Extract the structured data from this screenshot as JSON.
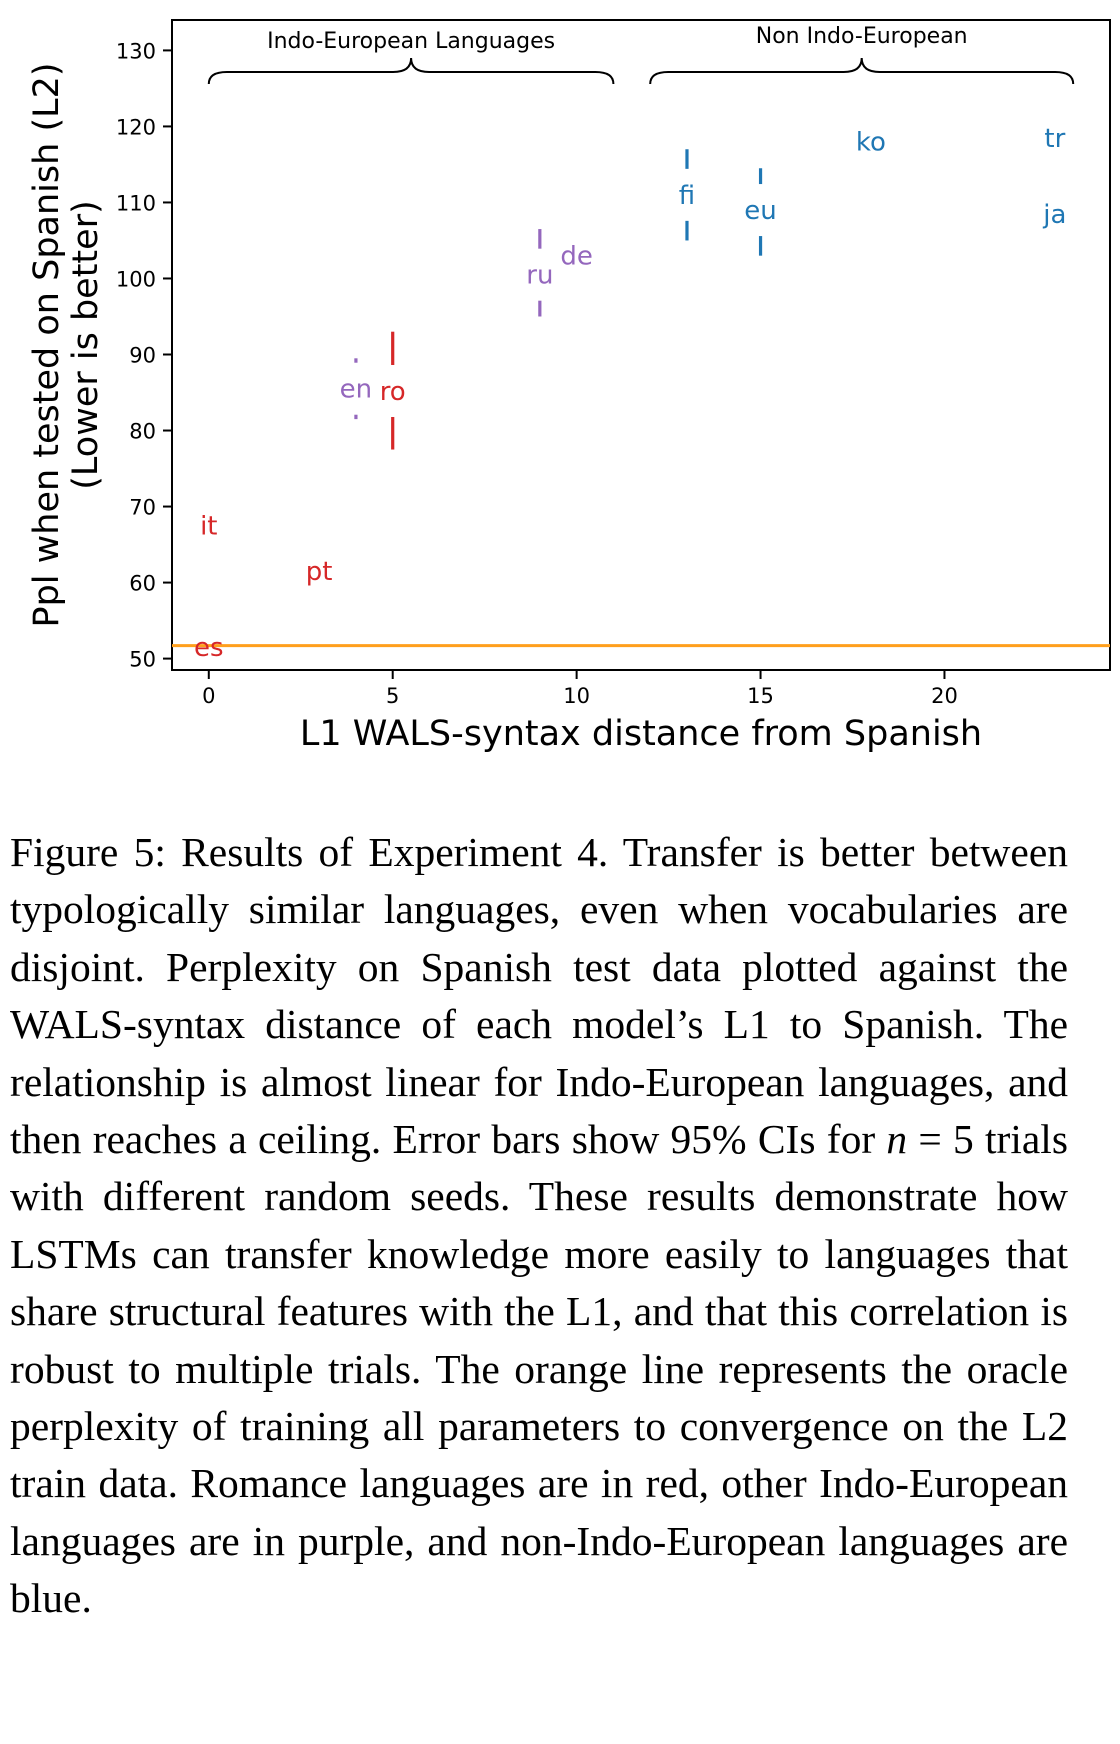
{
  "chart_data": {
    "type": "scatter",
    "xlabel": "L1 WALS-syntax distance from Spanish",
    "ylabel_line1": "Ppl when tested on Spanish (L2)",
    "ylabel_line2": "(Lower is better)",
    "xlim": [
      -1,
      24.5
    ],
    "ylim": [
      48.5,
      134
    ],
    "xticks": [
      0,
      5,
      10,
      15,
      20
    ],
    "yticks": [
      50,
      60,
      70,
      80,
      90,
      100,
      110,
      120,
      130
    ],
    "grid": false,
    "colors": {
      "romance": "#d62728",
      "indo_european": "#9467bd",
      "non_indo_european": "#1f77b4",
      "oracle": "#ff9f1c"
    },
    "oracle_line": {
      "y": 51.7,
      "color": "#ff9f1c"
    },
    "brackets": [
      {
        "label": "Indo-European Languages",
        "x_start": 0,
        "x_end": 11
      },
      {
        "label": "Non Indo-European",
        "x_start": 12,
        "x_end": 23.5
      }
    ],
    "points": [
      {
        "label": "es",
        "x": 0,
        "y": 51.5,
        "err": [
          51.5,
          51.5
        ],
        "group": "romance"
      },
      {
        "label": "it",
        "x": 0,
        "y": 67.5,
        "err": [
          65,
          70
        ],
        "group": "romance"
      },
      {
        "label": "pt",
        "x": 3,
        "y": 61.5,
        "err": [
          61.5,
          61.5
        ],
        "group": "romance"
      },
      {
        "label": "en",
        "x": 4,
        "y": 85.5,
        "err": [
          81.5,
          89.5
        ],
        "group": "indo_european"
      },
      {
        "label": "ro",
        "x": 5,
        "y": 85.2,
        "err": [
          77.5,
          93
        ],
        "group": "romance"
      },
      {
        "label": "ru",
        "x": 9,
        "y": 100.5,
        "err": [
          95,
          106.5
        ],
        "group": "indo_european"
      },
      {
        "label": "de",
        "x": 10,
        "y": 103,
        "err": [
          103,
          103
        ],
        "group": "indo_european"
      },
      {
        "label": "fi",
        "x": 13,
        "y": 111,
        "err": [
          105,
          117
        ],
        "group": "non_indo_european"
      },
      {
        "label": "eu",
        "x": 15,
        "y": 109,
        "err": [
          103,
          114.5
        ],
        "group": "non_indo_european"
      },
      {
        "label": "ko",
        "x": 18,
        "y": 118,
        "err": [
          118,
          118
        ],
        "group": "non_indo_european"
      },
      {
        "label": "tr",
        "x": 23,
        "y": 118.5,
        "err": [
          118.5,
          118.5
        ],
        "group": "non_indo_european"
      },
      {
        "label": "ja",
        "x": 23,
        "y": 108.5,
        "err": [
          108.5,
          108.5
        ],
        "group": "non_indo_european"
      }
    ]
  },
  "caption": {
    "p1": "Figure 5: Results of Experiment 4. Transfer is better between typologically similar languages, even when vocabularies are disjoint. Perplexity on Spanish test data plotted against the WALS-syntax distance of each model’s L1 to Spanish. The relationship is almost linear for Indo-European languages, and then reaches a ceiling. Error bars show 95% CIs for ",
    "var": "n",
    "p2": " = 5 trials with different random seeds. These results demonstrate how LSTMs can transfer knowledge more easily to languages that share structural features with the L1, and that this correlation is robust to multiple trials. The orange line represents the oracle perplexity of training all parameters to convergence on the L2 train data. Romance languages are in red, other Indo-European languages are in purple, and non-Indo-European languages are blue."
  }
}
